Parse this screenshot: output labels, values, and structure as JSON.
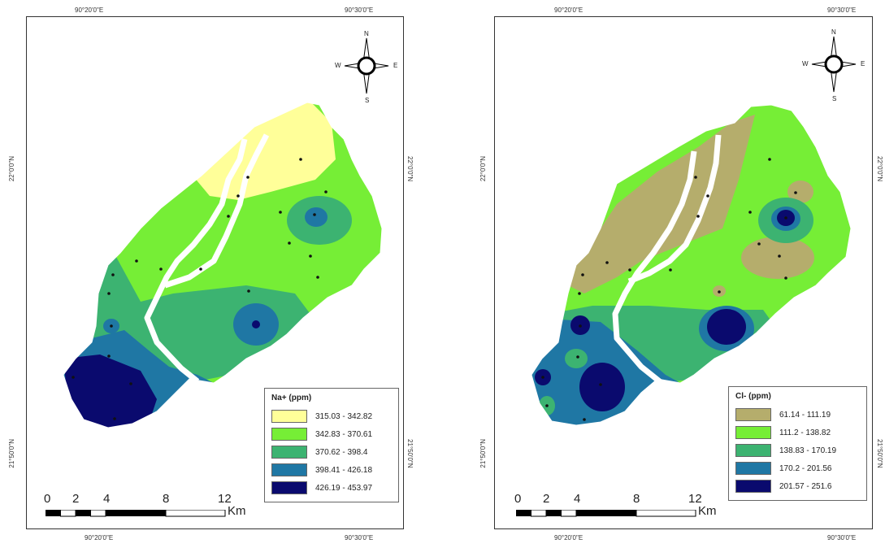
{
  "maps": [
    {
      "id": "left",
      "legend": {
        "title": "Na+ (ppm)",
        "classes": [
          {
            "label": "315.03 - 342.82",
            "color": "#ffff99"
          },
          {
            "label": "342.83 - 370.61",
            "color": "#76ee36"
          },
          {
            "label": "370.62 - 398.4",
            "color": "#3cb371"
          },
          {
            "label": "398.41 - 426.18",
            "color": "#1f77a4"
          },
          {
            "label": "426.19 - 453.97",
            "color": "#0a0a6e"
          }
        ]
      },
      "graticule": {
        "lon_top": [
          "90°20'0\"E",
          "90°30'0\"E"
        ],
        "lon_bottom": [
          "90°20'0\"E",
          "90°30'0\"E"
        ],
        "lat_left": [
          "22°0'0\"N",
          "21°50'0\"N"
        ],
        "lat_right": [
          "22°0'0\"N",
          "21°50'0\"N"
        ]
      }
    },
    {
      "id": "right",
      "legend": {
        "title": "Cl- (ppm)",
        "classes": [
          {
            "label": "61.14 - 111.19",
            "color": "#b5ad6c"
          },
          {
            "label": "111.2 - 138.82",
            "color": "#76ee36"
          },
          {
            "label": "138.83 - 170.19",
            "color": "#3cb371"
          },
          {
            "label": "170.2 - 201.56",
            "color": "#1f77a4"
          },
          {
            "label": "201.57 - 251.6",
            "color": "#0a0a6e"
          }
        ]
      },
      "graticule": {
        "lon_top": [
          "90°20'0\"E",
          "90°30'0\"E"
        ],
        "lon_bottom": [
          "90°20'0\"E",
          "90°30'0\"E"
        ],
        "lat_left": [
          "22°0'0\"N",
          "21°50'0\"N"
        ],
        "lat_right": [
          "22°0'0\"N",
          "21°50'0\"N"
        ]
      }
    }
  ],
  "compass": {
    "n": "N",
    "s": "S",
    "e": "E",
    "w": "W"
  },
  "scale": {
    "ticks": [
      "0",
      "2",
      "4",
      "8",
      "12"
    ],
    "unit": "Km"
  }
}
